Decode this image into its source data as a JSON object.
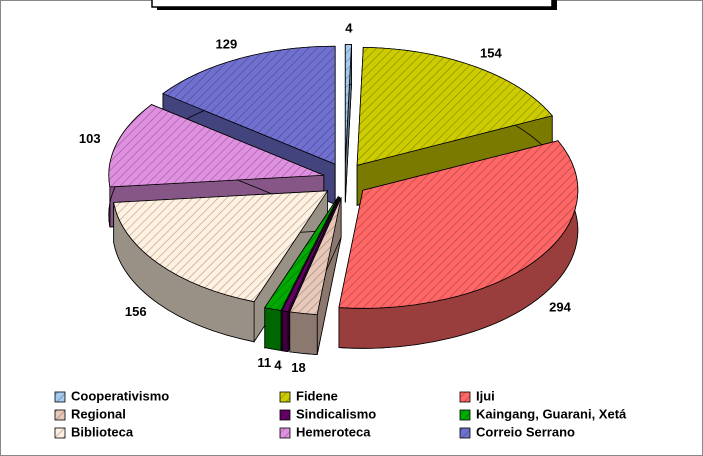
{
  "chart_data": {
    "type": "pie",
    "categories": [
      "Cooperativismo",
      "Fidene",
      "Ijui",
      "Regional",
      "Sindicalismo",
      "Kaingang, Guarani, Xetá",
      "Biblioteca",
      "Hemeroteca",
      "Correio Serrano"
    ],
    "values": [
      4,
      154,
      294,
      18,
      4,
      11,
      156,
      103,
      129
    ],
    "colors": [
      "#a6cbf0",
      "#cccc00",
      "#ff6666",
      "#e8c8b8",
      "#660066",
      "#00aa00",
      "#fff0e0",
      "#e090e0",
      "#7070d0"
    ]
  }
}
